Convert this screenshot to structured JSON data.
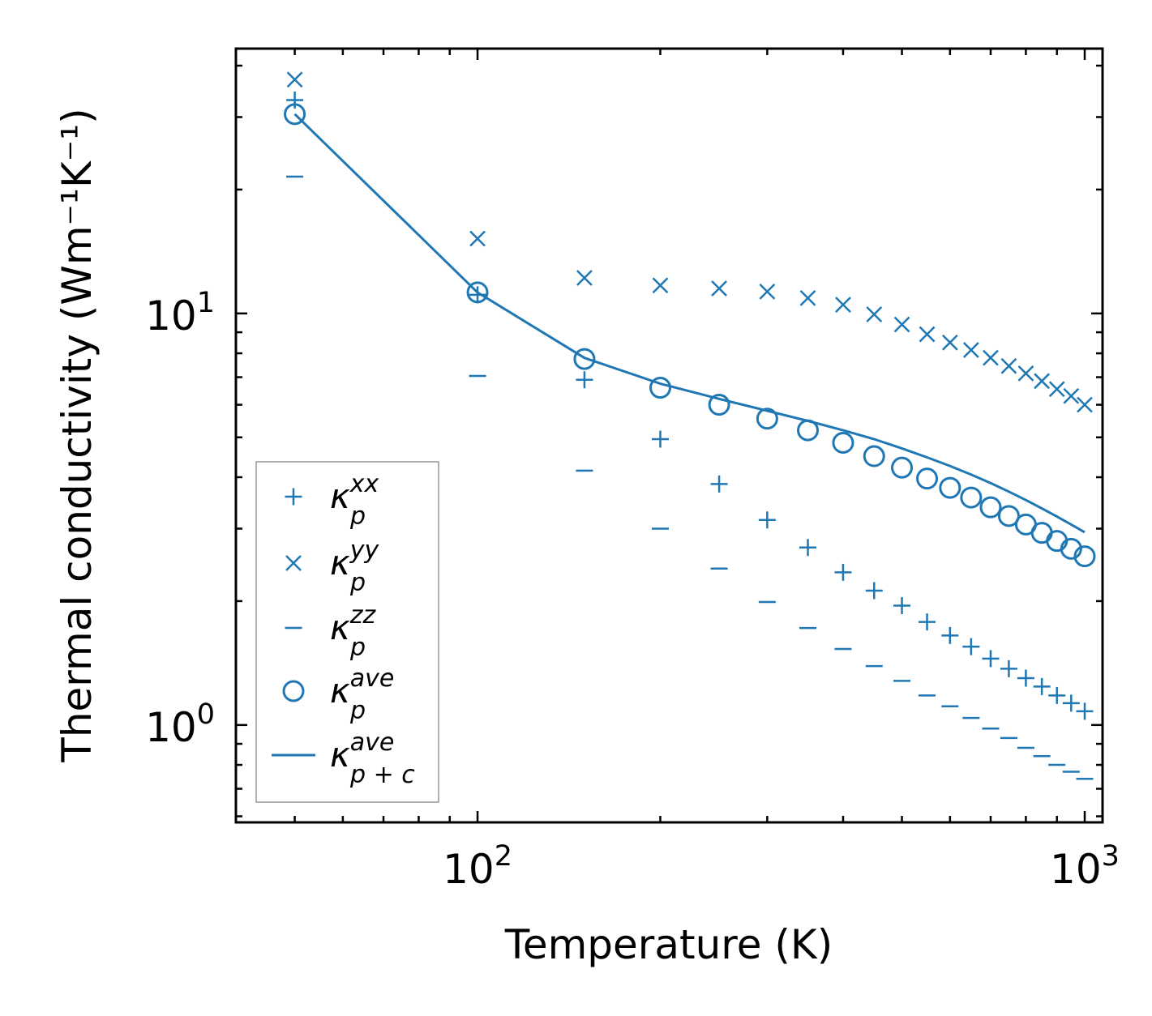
{
  "chart_data": {
    "type": "scatter",
    "title": "",
    "xlabel": "Temperature (K)",
    "ylabel": "Thermal conductivity (Wm⁻¹K⁻¹)",
    "xscale": "log",
    "yscale": "log",
    "xlim": [
      40,
      1070
    ],
    "ylim": [
      0.58,
      44
    ],
    "x_ticks": [
      {
        "base": "10",
        "exp": "2",
        "value": 100
      },
      {
        "base": "10",
        "exp": "3",
        "value": 1000
      }
    ],
    "y_ticks": [
      {
        "base": "10",
        "exp": "0",
        "value": 1
      },
      {
        "base": "10",
        "exp": "1",
        "value": 10
      }
    ],
    "legend_position": "lower-left",
    "color": "#1f77b4",
    "x": [
      50,
      100,
      150,
      200,
      250,
      300,
      350,
      400,
      450,
      500,
      550,
      600,
      650,
      700,
      750,
      800,
      850,
      900,
      950,
      1000
    ],
    "series": [
      {
        "name": "kappa_p^xx",
        "symbol": "κ",
        "sub": "p",
        "sup": "xx",
        "marker": "plus",
        "values": [
          33,
          11.1,
          6.9,
          4.95,
          3.85,
          3.15,
          2.7,
          2.35,
          2.12,
          1.95,
          1.78,
          1.65,
          1.55,
          1.45,
          1.37,
          1.3,
          1.24,
          1.18,
          1.13,
          1.08
        ]
      },
      {
        "name": "kappa_p^yy",
        "symbol": "κ",
        "sub": "p",
        "sup": "yy",
        "marker": "x",
        "values": [
          37,
          15.2,
          12.2,
          11.7,
          11.5,
          11.3,
          10.9,
          10.5,
          9.95,
          9.4,
          8.9,
          8.5,
          8.15,
          7.8,
          7.45,
          7.15,
          6.85,
          6.55,
          6.3,
          6.0
        ]
      },
      {
        "name": "kappa_p^zz",
        "symbol": "κ",
        "sub": "p",
        "sup": "zz",
        "marker": "hline",
        "values": [
          21.5,
          7.05,
          4.15,
          3.0,
          2.4,
          1.99,
          1.72,
          1.53,
          1.39,
          1.28,
          1.18,
          1.11,
          1.04,
          0.98,
          0.93,
          0.88,
          0.84,
          0.8,
          0.77,
          0.74
        ]
      },
      {
        "name": "kappa_p^ave",
        "symbol": "κ",
        "sub": "p",
        "sup": "ave",
        "marker": "circle",
        "values": [
          30.5,
          11.25,
          7.75,
          6.6,
          6.0,
          5.55,
          5.2,
          4.85,
          4.5,
          4.22,
          3.97,
          3.77,
          3.57,
          3.38,
          3.22,
          3.07,
          2.93,
          2.8,
          2.68,
          2.57
        ]
      },
      {
        "name": "kappa_p+c^ave",
        "symbol": "κ",
        "sub": "p + c",
        "sup": "ave",
        "marker": "line",
        "x": [
          50,
          100,
          150,
          200,
          250,
          300,
          350,
          400,
          450,
          500,
          550,
          600,
          650,
          700,
          750,
          800,
          850,
          900,
          950,
          1000
        ],
        "values": [
          30.5,
          11.25,
          7.8,
          6.75,
          6.2,
          5.8,
          5.48,
          5.2,
          4.95,
          4.7,
          4.47,
          4.26,
          4.06,
          3.87,
          3.69,
          3.52,
          3.36,
          3.21,
          3.07,
          2.94
        ]
      }
    ]
  }
}
